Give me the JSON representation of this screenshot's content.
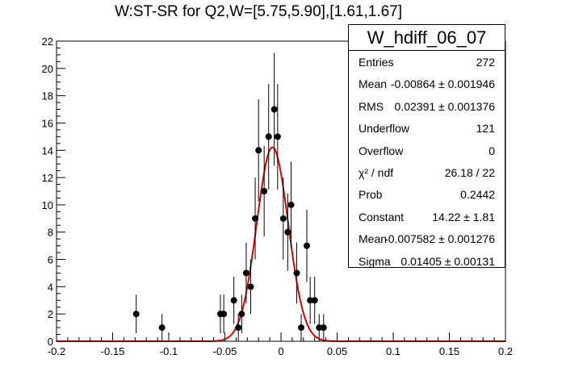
{
  "title": "W:ST-SR for Q2,W=[5.75,5.90],[1.61,1.67]",
  "stats": {
    "name": "W_hdiff_06_07",
    "rows": [
      {
        "label": "Entries",
        "value": "272"
      },
      {
        "label": "Mean",
        "value": "-0.00864 ± 0.001946"
      },
      {
        "label": "RMS",
        "value": "0.02391 ± 0.001376"
      },
      {
        "label": "Underflow",
        "value": "121"
      },
      {
        "label": "Overflow",
        "value": "0"
      },
      {
        "label": "χ² / ndf",
        "value": "26.18 / 22"
      },
      {
        "label": "Prob",
        "value": "0.2442"
      },
      {
        "label": "Constant",
        "value": "14.22 ± 1.81"
      },
      {
        "label": "Mean",
        "value": "-0.007582 ± 0.001276"
      },
      {
        "label": "Sigma",
        "value": "0.01405 ± 0.00131"
      }
    ]
  },
  "chart_data": {
    "type": "scatter",
    "title": "W:ST-SR for Q2,W=[5.75,5.90],[1.61,1.67]",
    "xlabel": "",
    "ylabel": "",
    "xlim": [
      -0.2,
      0.2
    ],
    "ylim": [
      0,
      22
    ],
    "xticks": [
      "-0.2",
      "-0.15",
      "-0.1",
      "-0.05",
      "0",
      "0.05",
      "0.1",
      "0.15",
      "0.2"
    ],
    "yticks": [
      "0",
      "2",
      "4",
      "6",
      "8",
      "10",
      "12",
      "14",
      "16",
      "18",
      "20",
      "22"
    ],
    "grid": false,
    "marker_color": "#000000",
    "fit_color": "#e00000",
    "points": [
      {
        "x": -0.129,
        "y": 2
      },
      {
        "x": -0.106,
        "y": 1
      },
      {
        "x": -0.054,
        "y": 2
      },
      {
        "x": -0.051,
        "y": 2
      },
      {
        "x": -0.042,
        "y": 3
      },
      {
        "x": -0.038,
        "y": 1
      },
      {
        "x": -0.035,
        "y": 2
      },
      {
        "x": -0.031,
        "y": 5
      },
      {
        "x": -0.027,
        "y": 4
      },
      {
        "x": -0.023,
        "y": 9
      },
      {
        "x": -0.02,
        "y": 14
      },
      {
        "x": -0.015,
        "y": 11
      },
      {
        "x": -0.011,
        "y": 15
      },
      {
        "x": -0.006,
        "y": 17
      },
      {
        "x": -0.003,
        "y": 15
      },
      {
        "x": 0.002,
        "y": 9
      },
      {
        "x": 0.006,
        "y": 8
      },
      {
        "x": 0.009,
        "y": 10
      },
      {
        "x": 0.014,
        "y": 5
      },
      {
        "x": 0.018,
        "y": 1
      },
      {
        "x": 0.023,
        "y": 7
      },
      {
        "x": 0.026,
        "y": 3
      },
      {
        "x": 0.03,
        "y": 3
      },
      {
        "x": 0.034,
        "y": 1
      },
      {
        "x": 0.038,
        "y": 1
      }
    ],
    "fit": {
      "function": "gaus",
      "constant": 14.22,
      "mean": -0.007582,
      "sigma": 0.01405
    }
  }
}
